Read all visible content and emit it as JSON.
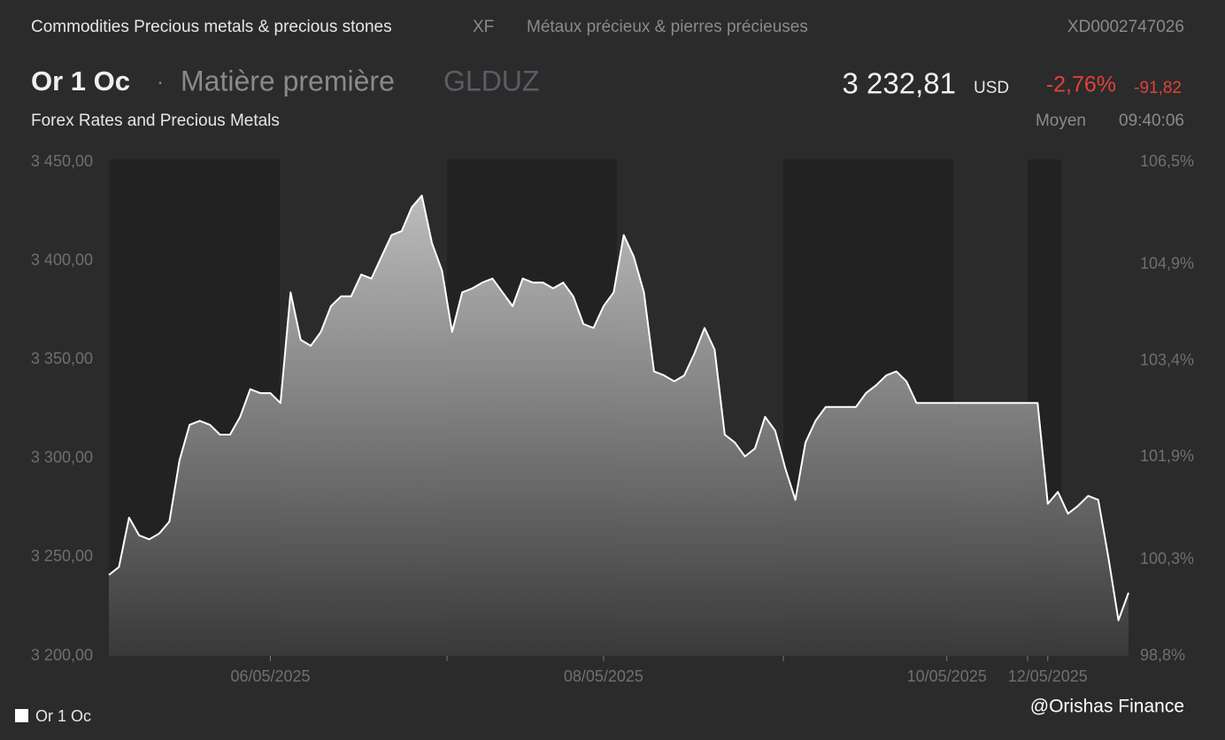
{
  "header": {
    "category": "Commodities Precious metals & precious stones",
    "exchange": "XF",
    "category_fr": "Métaux précieux & pierres précieuses",
    "isin": "XD0002747026",
    "name": "Or 1 Oc",
    "separator": "·",
    "kind": "Matière première",
    "ticker": "GLDUZ",
    "price": "3 232,81",
    "currency": "USD",
    "change_pct": "-2,76%",
    "change": "-91,82",
    "source": "Forex Rates and Precious Metals",
    "price_type": "Moyen",
    "time": "09:40:06"
  },
  "chart_data": {
    "type": "area",
    "categories": [
      null,
      null,
      null,
      null,
      null,
      null,
      null,
      null,
      null,
      null,
      null,
      null,
      null,
      null,
      null,
      null,
      "06/05/2025",
      null,
      null,
      null,
      null,
      null,
      null,
      null,
      null,
      null,
      null,
      null,
      null,
      null,
      null,
      null,
      null,
      null,
      null,
      null,
      null,
      null,
      null,
      null,
      null,
      null,
      null,
      null,
      null,
      null,
      null,
      null,
      null,
      "08/05/2025",
      null,
      null,
      null,
      null,
      null,
      null,
      null,
      null,
      null,
      null,
      null,
      null,
      null,
      null,
      null,
      null,
      null,
      null,
      null,
      null,
      null,
      null,
      null,
      null,
      null,
      null,
      null,
      null,
      null,
      null,
      null,
      null,
      null,
      "10/05/2025",
      null,
      null,
      null,
      null,
      null,
      null,
      null,
      null,
      null,
      "12/05/2025",
      null,
      null,
      null,
      null,
      null,
      null,
      null,
      null
    ],
    "series": [
      {
        "name": "Or 1 Oc",
        "color": "#ffffff",
        "values": [
          3241,
          3245,
          3270,
          3261,
          3259,
          3262,
          3268,
          3299,
          3317,
          3319,
          3317,
          3312,
          3312,
          3321,
          3335,
          3333,
          3333,
          3328,
          3384,
          3360,
          3357,
          3364,
          3377,
          3382,
          3382,
          3393,
          3391,
          3402,
          3413,
          3415,
          3427,
          3433,
          3409,
          3395,
          3364,
          3384,
          3386,
          3389,
          3391,
          3384,
          3377,
          3391,
          3389,
          3389,
          3386,
          3389,
          3382,
          3368,
          3366,
          3377,
          3384,
          3413,
          3402,
          3384,
          3344,
          3342,
          3339,
          3342,
          3353,
          3366,
          3355,
          3312,
          3308,
          3301,
          3305,
          3321,
          3314,
          3295,
          3279,
          3308,
          3319,
          3326,
          3326,
          3326,
          3326,
          3333,
          3337,
          3342,
          3344,
          3339,
          3328,
          3328,
          3328,
          3328,
          3328,
          3328,
          3328,
          3328,
          3328,
          3328,
          3328,
          3328,
          3328,
          3277,
          3283,
          3272,
          3276,
          3281,
          3279,
          3250,
          3218,
          3232
        ]
      }
    ],
    "ylim": [
      3200,
      3450
    ],
    "yticks": [
      {
        "value": 3200,
        "label": "3 200,00"
      },
      {
        "value": 3250,
        "label": "3 250,00"
      },
      {
        "value": 3300,
        "label": "3 300,00"
      },
      {
        "value": 3350,
        "label": "3 350,00"
      },
      {
        "value": 3400,
        "label": "3 400,00"
      },
      {
        "value": 3450,
        "label": "3 450,00"
      }
    ],
    "y2lim": [
      98.8,
      106.5
    ],
    "y2ticks": [
      {
        "value": 98.8,
        "label": "98,8%"
      },
      {
        "value": 100.3,
        "label": "100,3%"
      },
      {
        "value": 101.9,
        "label": "101,9%"
      },
      {
        "value": 103.4,
        "label": "103,4%"
      },
      {
        "value": 104.9,
        "label": "104,9%"
      },
      {
        "value": 106.5,
        "label": "106,5%"
      }
    ],
    "legend": "bottom-left"
  },
  "watermark": "@Orishas Finance"
}
